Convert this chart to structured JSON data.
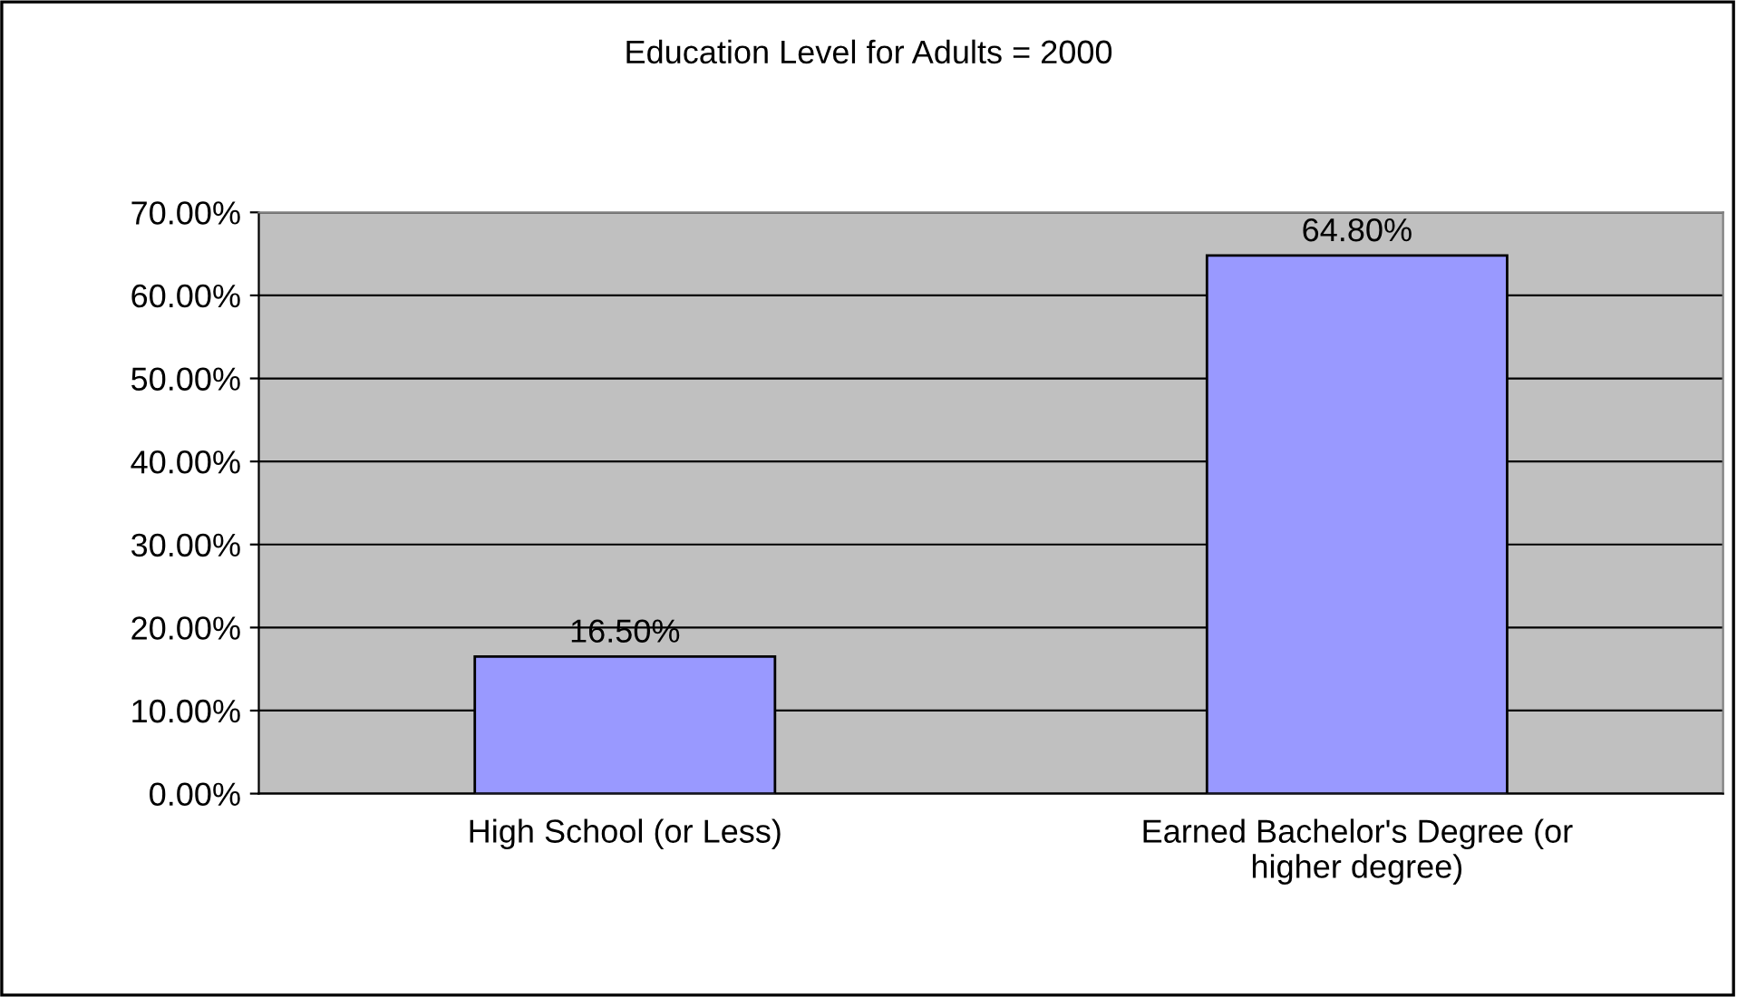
{
  "chart_data": {
    "type": "bar",
    "title": "Education Level for Adults = 2000",
    "categories": [
      "High School (or Less)",
      "Earned Bachelor's Degree (or\nhigher degree)"
    ],
    "values": [
      16.5,
      64.8
    ],
    "color": "#9999ff",
    "value_labels": [
      "16.50%",
      "64.80%"
    ],
    "ylim": [
      0,
      70
    ],
    "yticks": [
      {
        "value": 0,
        "label": "0.00%"
      },
      {
        "value": 10,
        "label": "10.00%"
      },
      {
        "value": 20,
        "label": "20.00%"
      },
      {
        "value": 30,
        "label": "30.00%"
      },
      {
        "value": 40,
        "label": "40.00%"
      },
      {
        "value": 50,
        "label": "50.00%"
      },
      {
        "value": 60,
        "label": "60.00%"
      },
      {
        "value": 70,
        "label": "70.00%"
      }
    ],
    "grid": "y",
    "legend": false
  }
}
